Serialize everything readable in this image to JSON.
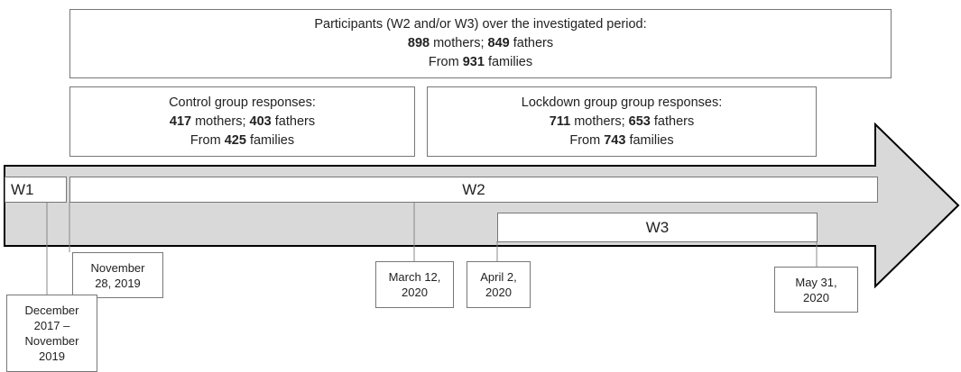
{
  "boxes": [
    {
      "lines": [
        [
          {
            "text": "Participants (W2 and/or W3) over the investigated period:"
          }
        ],
        [
          {
            "text": "898",
            "bold": true
          },
          {
            "text": " mothers; "
          },
          {
            "text": "849",
            "bold": true
          },
          {
            "text": " fathers"
          }
        ],
        [
          {
            "text": "From "
          },
          {
            "text": "931",
            "bold": true
          },
          {
            "text": " families"
          }
        ]
      ]
    },
    {
      "lines": [
        [
          {
            "text": "Control group responses:"
          }
        ],
        [
          {
            "text": "417",
            "bold": true
          },
          {
            "text": " mothers; "
          },
          {
            "text": "403",
            "bold": true
          },
          {
            "text": " fathers"
          }
        ],
        [
          {
            "text": "From "
          },
          {
            "text": "425",
            "bold": true
          },
          {
            "text": " families"
          }
        ]
      ]
    },
    {
      "lines": [
        [
          {
            "text": "Lockdown group group responses:"
          }
        ],
        [
          {
            "text": "711",
            "bold": true
          },
          {
            "text": " mothers; "
          },
          {
            "text": "653",
            "bold": true
          },
          {
            "text": " fathers"
          }
        ],
        [
          {
            "text": "From "
          },
          {
            "text": "743",
            "bold": true
          },
          {
            "text": " families"
          }
        ]
      ]
    }
  ],
  "waves": [
    "W1",
    "W2",
    "W3"
  ],
  "dates": [
    [
      "November",
      "28, 2019"
    ],
    [
      "December",
      "2017 –",
      "November",
      "2019"
    ],
    [
      "March 12,",
      "2020"
    ],
    [
      "April 2,",
      "2020"
    ],
    [
      "May 31,",
      "2020"
    ]
  ]
}
